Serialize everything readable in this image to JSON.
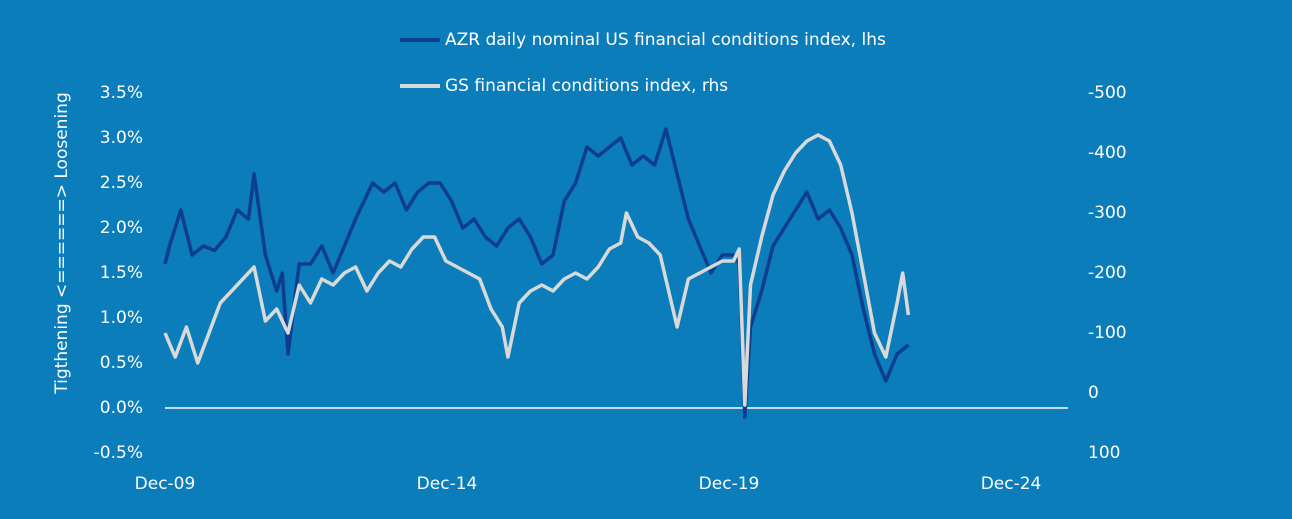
{
  "chart_data": {
    "type": "line",
    "y_axis_label": "Tigthening <======> Loosening",
    "xlim": [
      2009.92,
      2025.93
    ],
    "xticks": [
      {
        "value": 2009.92,
        "label": "Dec-09"
      },
      {
        "value": 2014.92,
        "label": "Dec-14"
      },
      {
        "value": 2019.92,
        "label": "Dec-19"
      },
      {
        "value": 2024.92,
        "label": "Dec-24"
      }
    ],
    "ylim": [
      -0.5,
      3.5
    ],
    "yticks": [
      {
        "value": -0.5,
        "label": "-0.5%"
      },
      {
        "value": 0,
        "label": "0.0%"
      },
      {
        "value": 0.5,
        "label": "0.5%"
      },
      {
        "value": 1,
        "label": "1.0%"
      },
      {
        "value": 1.5,
        "label": "1.5%"
      },
      {
        "value": 2,
        "label": "2.0%"
      },
      {
        "value": 2.5,
        "label": "2.5%"
      },
      {
        "value": 3,
        "label": "3.0%"
      },
      {
        "value": 3.5,
        "label": "3.5%"
      }
    ],
    "y2lim": [
      100,
      -500
    ],
    "y2ticks": [
      100,
      0,
      -100,
      -200,
      -300,
      -400,
      -500
    ],
    "negative_tick_color": "#e2262b",
    "zero_line": true,
    "legend": "top",
    "series": [
      {
        "name": "AZR daily nominal US financial conditions index, lhs",
        "color": "#0e3d8e",
        "axis": "y",
        "x": [
          2009.92,
          2010.0,
          2010.2,
          2010.4,
          2010.6,
          2010.8,
          2011.0,
          2011.2,
          2011.4,
          2011.5,
          2011.7,
          2011.9,
          2012.0,
          2012.1,
          2012.3,
          2012.5,
          2012.7,
          2012.9,
          2013.1,
          2013.3,
          2013.6,
          2013.8,
          2014.0,
          2014.2,
          2014.4,
          2014.6,
          2014.8,
          2015.0,
          2015.2,
          2015.4,
          2015.6,
          2015.8,
          2016.0,
          2016.2,
          2016.4,
          2016.6,
          2016.8,
          2017.0,
          2017.2,
          2017.4,
          2017.6,
          2017.8,
          2018.0,
          2018.2,
          2018.4,
          2018.6,
          2018.8,
          2019.0,
          2019.2,
          2019.4,
          2019.6,
          2019.8,
          2020.0,
          2020.1,
          2020.2,
          2020.3,
          2020.5,
          2020.7,
          2020.9,
          2021.1,
          2021.3,
          2021.5,
          2021.7,
          2021.9,
          2022.1,
          2022.3,
          2022.5,
          2022.7,
          2022.9,
          2023.1
        ],
        "values": [
          1.6,
          1.8,
          2.2,
          1.7,
          1.8,
          1.75,
          1.9,
          2.2,
          2.1,
          2.6,
          1.7,
          1.3,
          1.5,
          0.6,
          1.6,
          1.6,
          1.8,
          1.5,
          1.8,
          2.1,
          2.5,
          2.4,
          2.5,
          2.2,
          2.4,
          2.5,
          2.5,
          2.3,
          2.0,
          2.1,
          1.9,
          1.8,
          2.0,
          2.1,
          1.9,
          1.6,
          1.7,
          2.3,
          2.5,
          2.9,
          2.8,
          2.9,
          3.0,
          2.7,
          2.8,
          2.7,
          3.1,
          2.6,
          2.1,
          1.8,
          1.5,
          1.7,
          1.7,
          1.6,
          -0.1,
          0.9,
          1.3,
          1.8,
          2.0,
          2.2,
          2.4,
          2.1,
          2.2,
          2.0,
          1.7,
          1.1,
          0.6,
          0.3,
          0.6,
          0.7
        ]
      },
      {
        "name": "GS financial conditions index, rhs",
        "color": "#d9d9d9",
        "axis": "y2",
        "x": [
          2009.92,
          2010.1,
          2010.3,
          2010.5,
          2010.7,
          2010.9,
          2011.1,
          2011.3,
          2011.5,
          2011.7,
          2011.9,
          2012.1,
          2012.3,
          2012.5,
          2012.7,
          2012.9,
          2013.1,
          2013.3,
          2013.5,
          2013.7,
          2013.9,
          2014.1,
          2014.3,
          2014.5,
          2014.7,
          2014.9,
          2015.1,
          2015.3,
          2015.5,
          2015.7,
          2015.9,
          2016.0,
          2016.2,
          2016.4,
          2016.6,
          2016.8,
          2017.0,
          2017.2,
          2017.4,
          2017.6,
          2017.8,
          2018.0,
          2018.1,
          2018.3,
          2018.5,
          2018.7,
          2018.9,
          2019.0,
          2019.2,
          2019.4,
          2019.6,
          2019.8,
          2020.0,
          2020.1,
          2020.2,
          2020.3,
          2020.5,
          2020.7,
          2020.9,
          2021.1,
          2021.3,
          2021.5,
          2021.7,
          2021.9,
          2022.1,
          2022.3,
          2022.5,
          2022.7,
          2022.9,
          2023.0,
          2023.1
        ],
        "values": [
          -100,
          -60,
          -110,
          -50,
          -100,
          -150,
          -170,
          -190,
          -210,
          -120,
          -140,
          -100,
          -180,
          -150,
          -190,
          -180,
          -200,
          -210,
          -170,
          -200,
          -220,
          -210,
          -240,
          -260,
          -260,
          -220,
          -210,
          -200,
          -190,
          -140,
          -110,
          -60,
          -150,
          -170,
          -180,
          -170,
          -190,
          -200,
          -190,
          -210,
          -240,
          -250,
          -300,
          -260,
          -250,
          -230,
          -150,
          -110,
          -190,
          -200,
          -210,
          -220,
          -220,
          -240,
          20,
          -180,
          -260,
          -330,
          -370,
          -400,
          -420,
          -430,
          -420,
          -380,
          -300,
          -200,
          -100,
          -60,
          -150,
          -200,
          -130
        ]
      }
    ]
  }
}
